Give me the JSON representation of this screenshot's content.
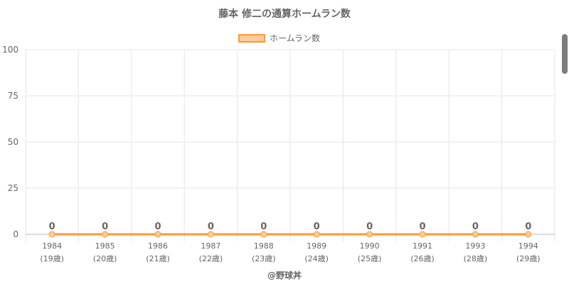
{
  "chart_data": {
    "type": "line",
    "title": "藤本 修二の通算ホームラン数",
    "categories": [
      "1984",
      "1985",
      "1986",
      "1987",
      "1988",
      "1989",
      "1990",
      "1991",
      "1993",
      "1994"
    ],
    "ages": [
      "(19歳)",
      "(20歳)",
      "(21歳)",
      "(22歳)",
      "(23歳)",
      "(24歳)",
      "(25歳)",
      "(26歳)",
      "(28歳)",
      "(29歳)"
    ],
    "series": [
      {
        "name": "ホームラン数",
        "values": [
          0,
          0,
          0,
          0,
          0,
          0,
          0,
          0,
          0,
          0
        ],
        "color": "#ff9933",
        "fill": "#ffcc99"
      }
    ],
    "ylim": [
      0,
      100
    ],
    "yticks": [
      0,
      25,
      50,
      75,
      100
    ],
    "grid": true,
    "legend": "top"
  },
  "credit": "@野球丼"
}
